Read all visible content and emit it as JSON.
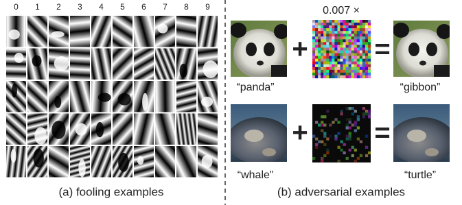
{
  "panel_a": {
    "column_labels": [
      "0",
      "1",
      "2",
      "3",
      "4",
      "5",
      "6",
      "7",
      "8",
      "9"
    ],
    "caption": "(a) fooling examples"
  },
  "panel_b": {
    "scale_label": "0.007 ×",
    "plus": "+",
    "equals": "=",
    "row1": {
      "input_label": "“panda”",
      "output_label": "“gibbon”"
    },
    "row2": {
      "input_label": "“whale”",
      "output_label": "“turtle”"
    },
    "caption": "(b) adversarial examples"
  }
}
